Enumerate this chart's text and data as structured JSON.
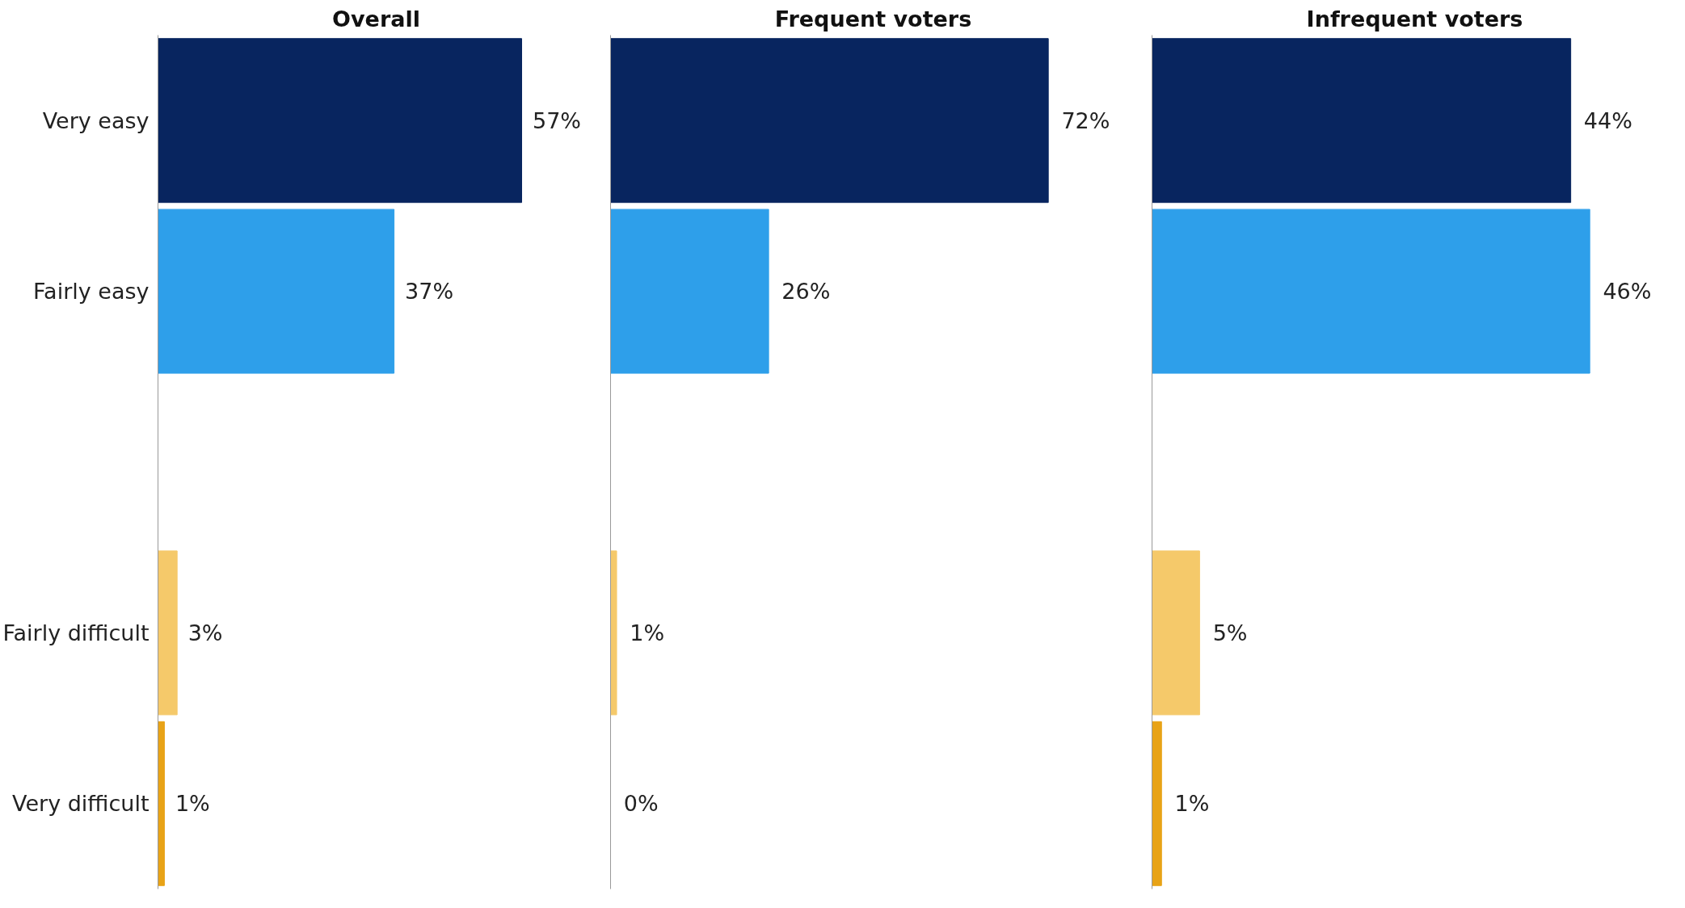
{
  "chart_data": [
    {
      "type": "bar",
      "orientation": "horizontal",
      "title": "Overall",
      "categories": [
        "Very easy",
        "Fairly easy",
        null,
        "Fairly difficult",
        "Very difficult"
      ],
      "values": [
        57,
        37,
        null,
        3,
        1
      ],
      "colors": [
        "#08255f",
        "#2e9fea",
        "#2e9fea",
        "#f5c96a",
        "#e8a317"
      ],
      "value_labels": [
        "57%",
        "37%",
        null,
        "3%",
        "1%"
      ],
      "grid": false,
      "tick_labels": "y"
    },
    {
      "type": "bar",
      "orientation": "horizontal",
      "title": "Frequent voters",
      "categories": [
        null,
        null,
        null,
        null,
        null
      ],
      "values": [
        72,
        26,
        null,
        1,
        0
      ],
      "colors": [
        "#08255f",
        "#2e9fea",
        "#2e9fea",
        "#f5c96a",
        "#e8a317"
      ],
      "value_labels": [
        "72%",
        "26%",
        null,
        "1%",
        "0%"
      ],
      "grid": false,
      "tick_labels": false
    },
    {
      "type": "bar",
      "orientation": "horizontal",
      "title": "Infrequent voters",
      "categories": [
        null,
        null,
        null,
        null,
        null
      ],
      "values": [
        44,
        46,
        null,
        5,
        1
      ],
      "colors": [
        "#08255f",
        "#2e9fea",
        "#2e9fea",
        "#f5c96a",
        "#e8a317"
      ],
      "value_labels": [
        "44%",
        "46%",
        null,
        "5%",
        "1%"
      ],
      "grid": false,
      "tick_labels": false
    }
  ]
}
